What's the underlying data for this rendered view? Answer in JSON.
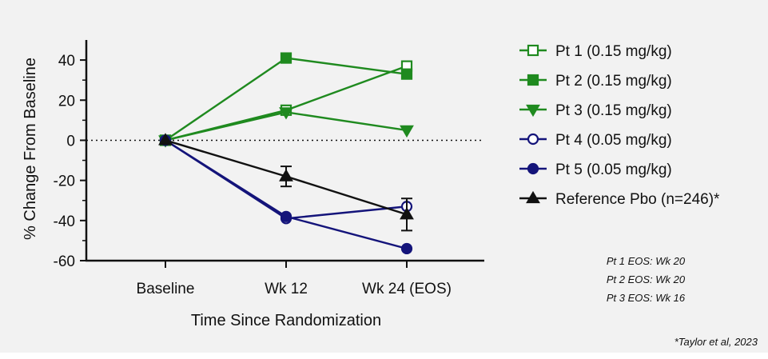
{
  "chart_data": {
    "type": "line",
    "title": "",
    "xlabel": "Time Since Randomization",
    "ylabel": "% Change From Baseline",
    "categories": [
      "Baseline",
      "Wk 12",
      "Wk 24 (EOS)"
    ],
    "ylim": [
      -60,
      50
    ],
    "yticks": [
      -60,
      -40,
      -20,
      0,
      20,
      40
    ],
    "reference_line": {
      "y": 0,
      "style": "dotted"
    },
    "series": [
      {
        "name": "Pt 1 (0.15 mg/kg)",
        "color": "#1f8a1f",
        "marker": "square-open",
        "values": [
          0,
          15,
          37
        ]
      },
      {
        "name": "Pt 2 (0.15 mg/kg)",
        "color": "#1f8a1f",
        "marker": "square-filled",
        "values": [
          0,
          41,
          33
        ]
      },
      {
        "name": "Pt 3 (0.15 mg/kg)",
        "color": "#1f8a1f",
        "marker": "triangle-down-filled",
        "values": [
          0,
          14,
          5
        ]
      },
      {
        "name": "Pt 4 (0.05 mg/kg)",
        "color": "#14147a",
        "marker": "circle-open",
        "values": [
          0,
          -39,
          -33
        ]
      },
      {
        "name": "Pt 5 (0.05 mg/kg)",
        "color": "#14147a",
        "marker": "circle-filled",
        "values": [
          0,
          -38,
          -54
        ]
      },
      {
        "name": "Reference Pbo (n=246)*",
        "color": "#111111",
        "marker": "triangle-up-filled",
        "values": [
          0,
          -18,
          -37
        ],
        "error": [
          0,
          5,
          8
        ]
      }
    ],
    "legend_position": "right",
    "notes": [
      "Pt 1 EOS: Wk 20",
      "Pt 2 EOS: Wk 20",
      "Pt 3 EOS: Wk 16"
    ],
    "citation": "*Taylor et al, 2023"
  }
}
